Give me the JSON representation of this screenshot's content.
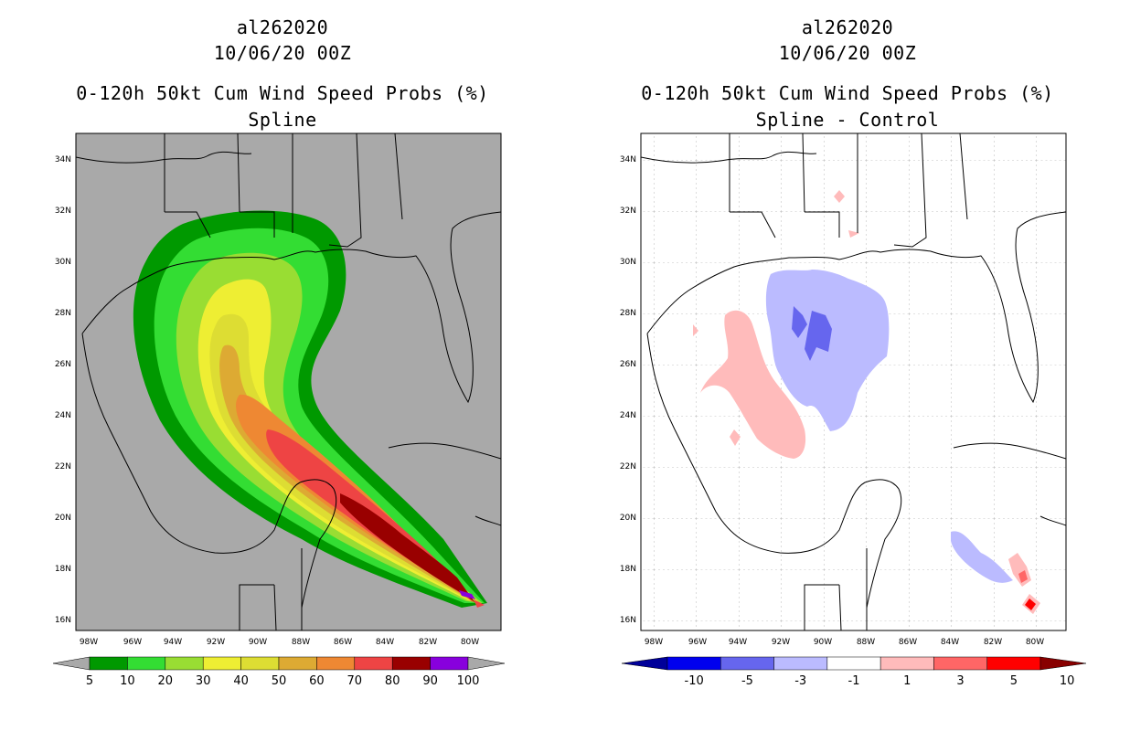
{
  "panels": [
    {
      "id": "left",
      "title_storm": "al262020",
      "title_date": "10/06/20 00Z",
      "title_product": "0-120h 50kt Cum Wind Speed Probs (%)",
      "subtitle": "Spline",
      "background": "#a9a9a9"
    },
    {
      "id": "right",
      "title_storm": "al262020",
      "title_date": "10/06/20 00Z",
      "title_product": "0-120h 50kt Cum Wind Speed Probs (%)",
      "subtitle": "Spline - Control",
      "background": "#ffffff"
    }
  ],
  "axes": {
    "lat_labels": [
      "34N",
      "32N",
      "30N",
      "28N",
      "26N",
      "24N",
      "22N",
      "20N",
      "18N",
      "16N"
    ],
    "lon_labels": [
      "98W",
      "96W",
      "94W",
      "92W",
      "90W",
      "88W",
      "86W",
      "84W",
      "82W",
      "80W"
    ]
  },
  "colorbar_left": {
    "labels": [
      "5",
      "10",
      "20",
      "30",
      "40",
      "50",
      "60",
      "70",
      "80",
      "90",
      "100"
    ],
    "colors": [
      "#009900",
      "#33dd33",
      "#99dd33",
      "#eeee33",
      "#dddd33",
      "#ddaa33",
      "#ee8833",
      "#ee4444",
      "#990000",
      "#8800dd"
    ],
    "under_color": "#a9a9a9",
    "over_color": "#a9a9a9"
  },
  "colorbar_right": {
    "labels": [
      "-10",
      "-5",
      "-3",
      "-1",
      "1",
      "3",
      "5",
      "10"
    ],
    "colors": [
      "#0000ee",
      "#6666ee",
      "#bbbbff",
      "#ffffff",
      "#ffbbbb",
      "#ff6666",
      "#ff0000"
    ],
    "under_color": "#000099",
    "over_color": "#880000"
  }
}
